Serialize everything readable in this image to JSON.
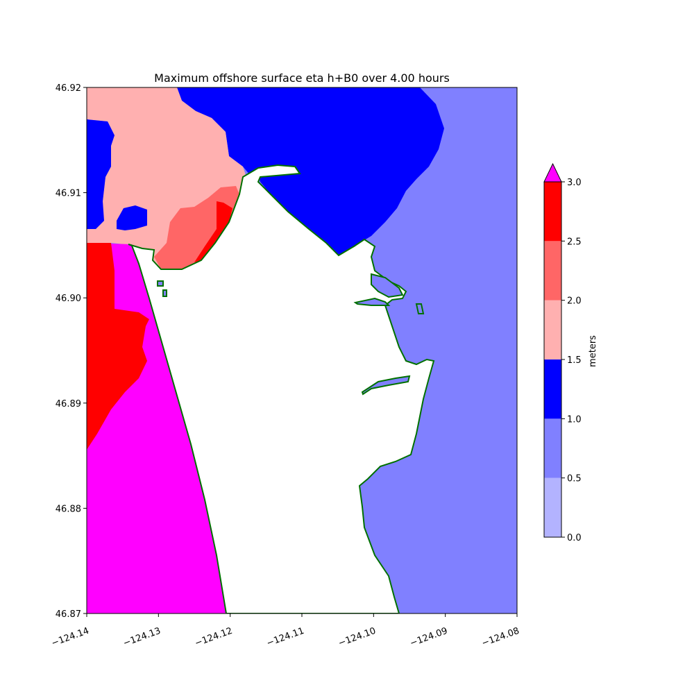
{
  "title": "Maximum offshore surface eta h+B0 over 4.00 hours",
  "colors": {
    "magenta": "#ff00ff",
    "red": "#ff0000",
    "salmon": "#ff6666",
    "pink": "#ffb0b0",
    "blue": "#0000ff",
    "mid_blue": "#8080ff",
    "light_blue": "#b3b3ff",
    "shoreline": "#007000",
    "land": "#ffffff"
  },
  "map": {
    "x_range": [
      -124.14,
      -124.08
    ],
    "y_range": [
      46.87,
      46.92
    ],
    "x_ticks": [
      "−124.14",
      "−124.13",
      "−124.12",
      "−124.11",
      "−124.10",
      "−124.09",
      "−124.08"
    ],
    "y_ticks": [
      "46.87",
      "46.88",
      "46.89",
      "46.90",
      "46.91",
      "46.92"
    ]
  },
  "colorbar": {
    "label": "meters",
    "levels": [
      0.0,
      0.5,
      1.0,
      1.5,
      2.0,
      2.5,
      3.0
    ],
    "tick_labels": [
      "0.0",
      "0.5",
      "1.0",
      "1.5",
      "2.0",
      "2.5",
      "3.0"
    ],
    "band_colors": [
      "#b3b3ff",
      "#8080ff",
      "#0000ff",
      "#ffb0b0",
      "#ff6666",
      "#ff0000"
    ],
    "extend_color": "#ff00ff"
  }
}
